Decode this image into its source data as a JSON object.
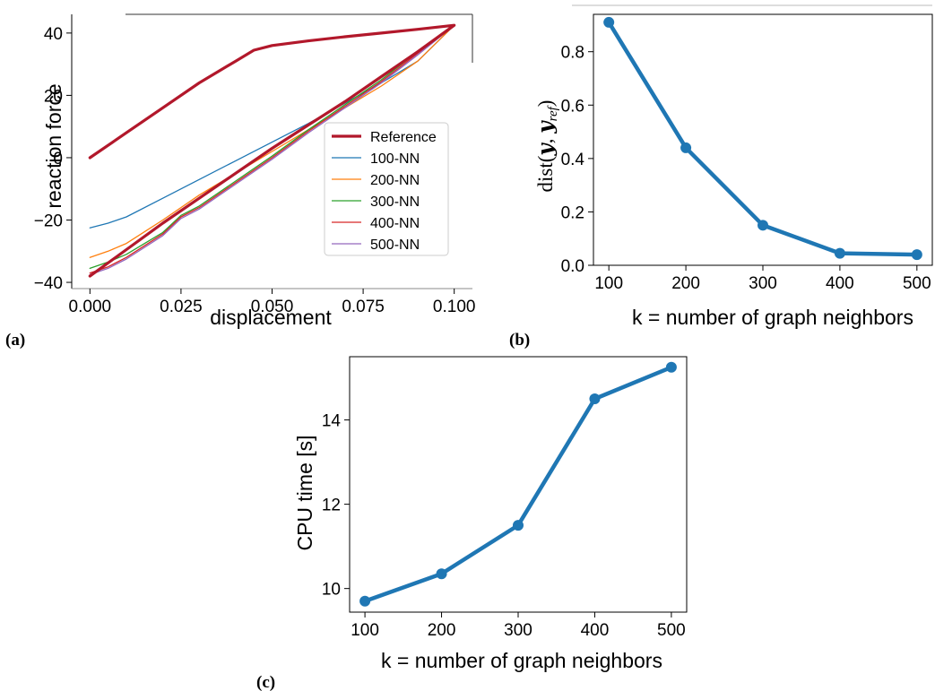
{
  "panels": {
    "a": "(a)",
    "b": "(b)",
    "c": "(c)"
  },
  "chart_data": [
    {
      "id": "a",
      "type": "line",
      "title": "",
      "xlabel": "displacement",
      "ylabel": "reaction force",
      "xlim": [
        -0.005,
        0.105
      ],
      "ylim": [
        -42,
        46
      ],
      "xticks": [
        0.0,
        0.025,
        0.05,
        0.075,
        0.1
      ],
      "xtick_labels": [
        "0.000",
        "0.025",
        "0.050",
        "0.075",
        "0.100"
      ],
      "yticks": [
        -40,
        -20,
        0,
        20,
        40
      ],
      "ytick_labels": [
        "−40",
        "−20",
        "0",
        "20",
        "40"
      ],
      "legend_position": "lower-right",
      "series": [
        {
          "name": "Reference",
          "color": "#b2182b",
          "width": 3.2,
          "x": [
            0.0,
            0.01,
            0.02,
            0.03,
            0.04,
            0.045,
            0.05,
            0.06,
            0.07,
            0.08,
            0.09,
            0.1,
            0.09,
            0.08,
            0.07,
            0.06,
            0.05,
            0.04,
            0.03,
            0.02,
            0.01,
            0.0
          ],
          "y": [
            0,
            8,
            16,
            24,
            31,
            34.5,
            36,
            37.5,
            38.8,
            40,
            41.2,
            42.5,
            34,
            26,
            18,
            10.5,
            3,
            -5,
            -13,
            -21,
            -29.5,
            -38
          ]
        },
        {
          "name": "100-NN",
          "color": "#1f77b4",
          "width": 1.3,
          "x": [
            0.0,
            0.005,
            0.01,
            0.02,
            0.03,
            0.04,
            0.05,
            0.06,
            0.07,
            0.08,
            0.09,
            0.1
          ],
          "y": [
            -22.5,
            -21,
            -19,
            -13,
            -7,
            -1,
            5,
            11,
            17.5,
            24,
            31,
            42.5
          ]
        },
        {
          "name": "200-NN",
          "color": "#ff7f0e",
          "width": 1.3,
          "x": [
            0.0,
            0.005,
            0.01,
            0.02,
            0.03,
            0.04,
            0.05,
            0.06,
            0.07,
            0.08,
            0.09,
            0.1
          ],
          "y": [
            -32,
            -30,
            -27.5,
            -20,
            -12,
            -5,
            2,
            9,
            16,
            23,
            31,
            42.5
          ]
        },
        {
          "name": "300-NN",
          "color": "#2ca02c",
          "width": 1.3,
          "x": [
            0.0,
            0.005,
            0.01,
            0.02,
            0.025,
            0.03,
            0.04,
            0.05,
            0.06,
            0.07,
            0.08,
            0.09,
            0.1
          ],
          "y": [
            -35.5,
            -33.5,
            -31,
            -24,
            -18.5,
            -15.5,
            -7.5,
            0.5,
            9,
            17,
            25,
            34,
            42.5
          ]
        },
        {
          "name": "400-NN",
          "color": "#d62728",
          "width": 1.3,
          "x": [
            0.0,
            0.005,
            0.01,
            0.02,
            0.025,
            0.03,
            0.04,
            0.05,
            0.06,
            0.07,
            0.08,
            0.09,
            0.1
          ],
          "y": [
            -37,
            -35,
            -32,
            -24.5,
            -19,
            -16,
            -8,
            0,
            8.5,
            16.5,
            24.5,
            33.5,
            42.5
          ]
        },
        {
          "name": "500-NN",
          "color": "#9467bd",
          "width": 1.3,
          "x": [
            0.0,
            0.005,
            0.01,
            0.02,
            0.025,
            0.03,
            0.04,
            0.05,
            0.06,
            0.07,
            0.08,
            0.09,
            0.1
          ],
          "y": [
            -37.5,
            -35.5,
            -32.5,
            -25,
            -19.5,
            -16.5,
            -8.5,
            -0.5,
            8,
            16,
            24,
            33,
            42.5
          ]
        }
      ]
    },
    {
      "id": "b",
      "type": "line",
      "title": "",
      "xlabel": "k = number of graph neighbors",
      "ylabel": "dist(y, y_ref)",
      "ylabel_parts": {
        "fn": "dist(",
        "y1": "y",
        "comma": ", ",
        "y2": "y",
        "sub": "ref",
        "close": ")"
      },
      "xlim": [
        80,
        520
      ],
      "ylim": [
        0,
        0.94
      ],
      "xticks": [
        100,
        200,
        300,
        400,
        500
      ],
      "xtick_labels": [
        "100",
        "200",
        "300",
        "400",
        "500"
      ],
      "yticks": [
        0.0,
        0.2,
        0.4,
        0.6,
        0.8
      ],
      "ytick_labels": [
        "0.0",
        "0.2",
        "0.4",
        "0.6",
        "0.8"
      ],
      "series": [
        {
          "color": "#1f77b4",
          "width": 4.5,
          "x": [
            100,
            200,
            300,
            400,
            500
          ],
          "y": [
            0.91,
            0.44,
            0.15,
            0.045,
            0.04
          ]
        }
      ]
    },
    {
      "id": "c",
      "type": "line",
      "title": "",
      "xlabel": "k = number of graph neighbors",
      "ylabel": "CPU time [s]",
      "xlim": [
        80,
        520
      ],
      "ylim": [
        9.44,
        15.5
      ],
      "xticks": [
        100,
        200,
        300,
        400,
        500
      ],
      "xtick_labels": [
        "100",
        "200",
        "300",
        "400",
        "500"
      ],
      "yticks": [
        10,
        12,
        14
      ],
      "ytick_labels": [
        "10",
        "12",
        "14"
      ],
      "series": [
        {
          "color": "#1f77b4",
          "width": 4.5,
          "x": [
            100,
            200,
            300,
            400,
            500
          ],
          "y": [
            9.7,
            10.35,
            11.5,
            14.5,
            15.25
          ]
        }
      ]
    }
  ]
}
